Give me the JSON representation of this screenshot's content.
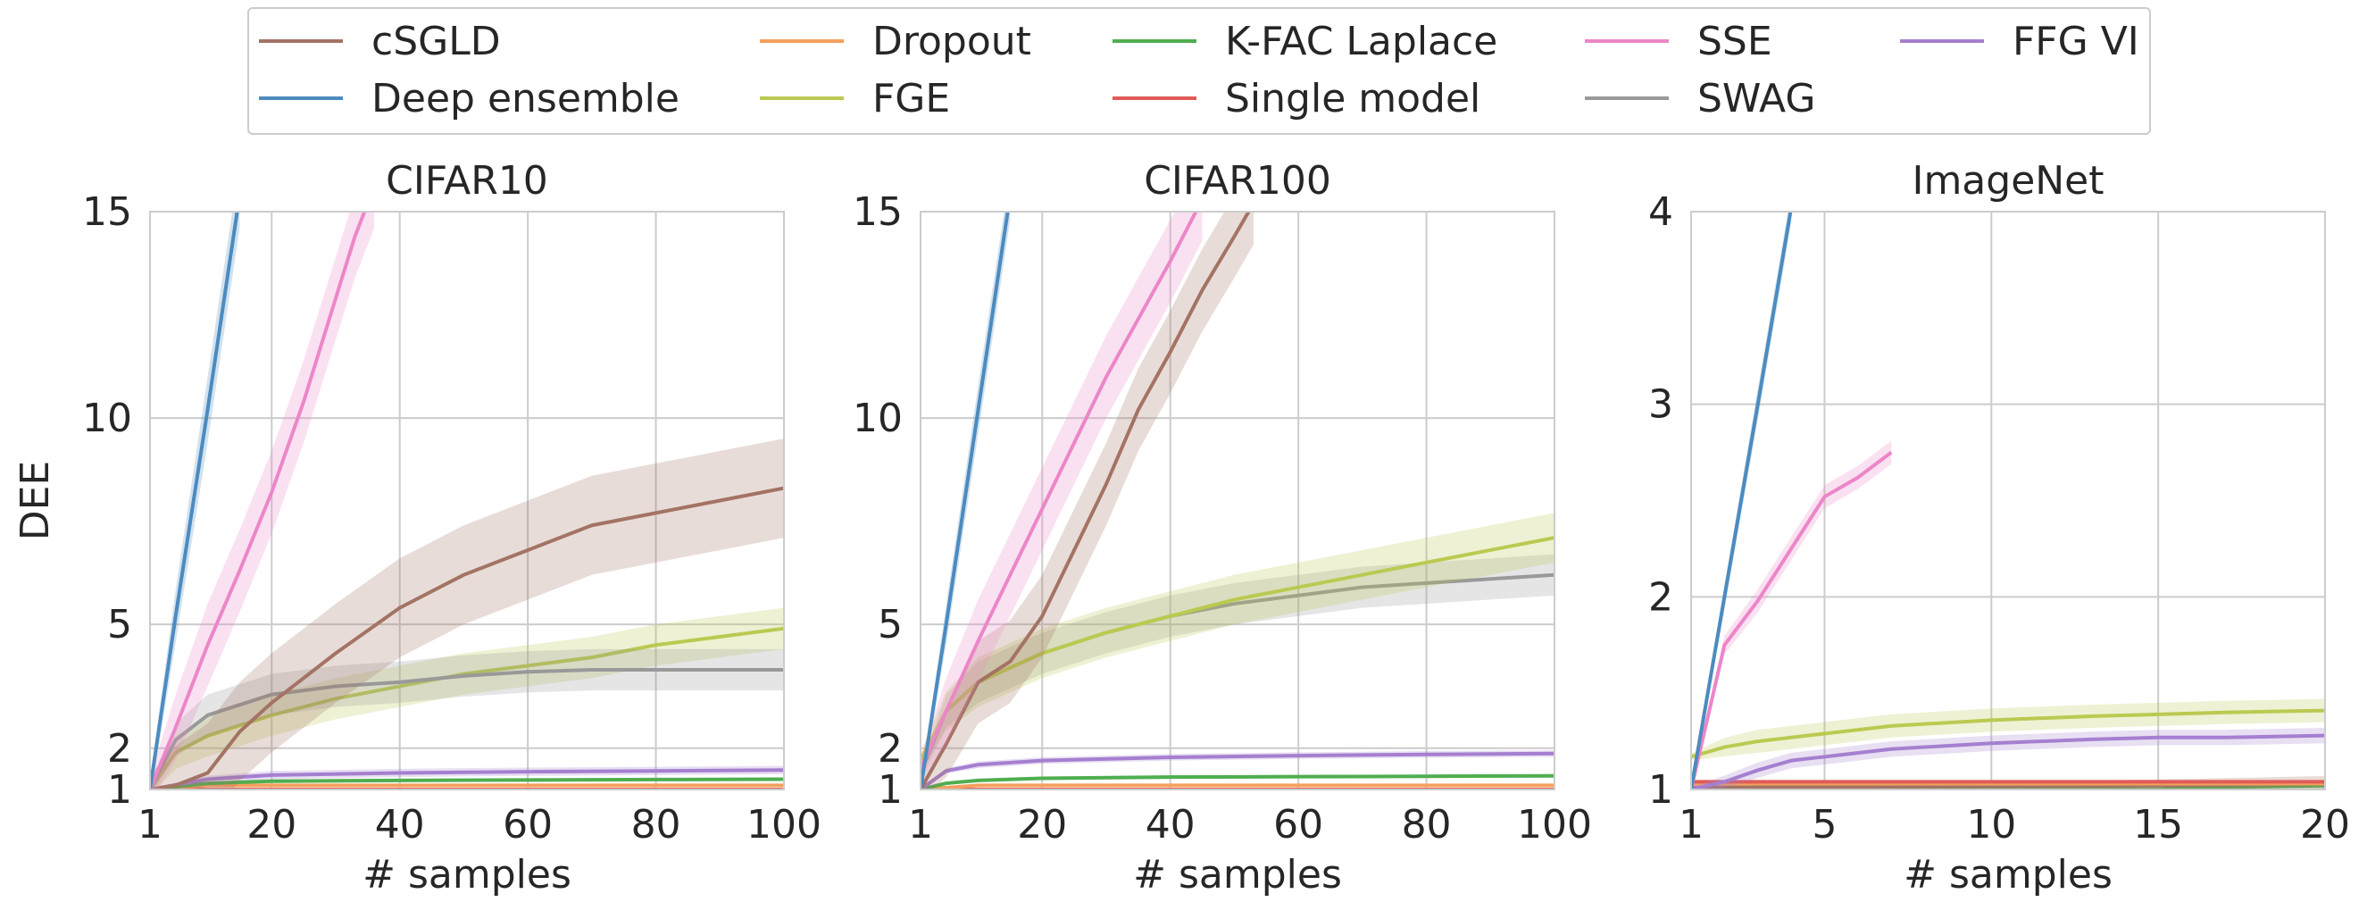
{
  "legend": {
    "items": [
      {
        "label": "cSGLD",
        "color": "#a37364"
      },
      {
        "label": "Deep ensemble",
        "color": "#4c8bbf"
      },
      {
        "label": "Dropout",
        "color": "#f5a05c"
      },
      {
        "label": "FGE",
        "color": "#bcc951"
      },
      {
        "label": "K-FAC Laplace",
        "color": "#4fae4f"
      },
      {
        "label": "Single model",
        "color": "#df5b57"
      },
      {
        "label": "SSE",
        "color": "#ec86c8"
      },
      {
        "label": "SWAG",
        "color": "#999999"
      },
      {
        "label": "FFG VI",
        "color": "#a57fd0"
      }
    ]
  },
  "chart_data": [
    {
      "type": "line",
      "title": "CIFAR10",
      "xlabel": "# samples",
      "ylabel": "DEE",
      "xlim": [
        1,
        100
      ],
      "ylim": [
        1,
        15
      ],
      "xticks": [
        1,
        20,
        40,
        60,
        80,
        100
      ],
      "yticks": [
        1,
        2,
        5,
        10,
        15
      ],
      "grid": true,
      "series": [
        {
          "name": "Deep ensemble",
          "x": [
            1,
            5,
            10,
            15
          ],
          "y": [
            1.0,
            5.2,
            10.2,
            15.4
          ],
          "band": 0.8
        },
        {
          "name": "SSE",
          "x": [
            1,
            5,
            10,
            15,
            20,
            25,
            30,
            33,
            36
          ],
          "y": [
            1.0,
            2.5,
            4.5,
            6.3,
            8.2,
            10.4,
            12.9,
            14.4,
            15.6
          ],
          "band": 1.0
        },
        {
          "name": "cSGLD",
          "x": [
            1,
            5,
            10,
            15,
            20,
            30,
            40,
            50,
            60,
            70,
            80,
            90,
            100
          ],
          "y": [
            1.0,
            1.1,
            1.4,
            2.4,
            3.1,
            4.3,
            5.4,
            6.2,
            6.8,
            7.4,
            7.7,
            8.0,
            8.3
          ],
          "band": 1.2
        },
        {
          "name": "SWAG",
          "x": [
            1,
            5,
            10,
            20,
            30,
            40,
            50,
            60,
            70,
            80,
            90,
            100
          ],
          "y": [
            1.0,
            2.2,
            2.8,
            3.3,
            3.5,
            3.6,
            3.75,
            3.85,
            3.9,
            3.9,
            3.9,
            3.9
          ],
          "band": 0.5
        },
        {
          "name": "FGE",
          "x": [
            1,
            5,
            10,
            20,
            30,
            40,
            50,
            60,
            70,
            80,
            90,
            100
          ],
          "y": [
            1.0,
            1.9,
            2.3,
            2.8,
            3.2,
            3.5,
            3.8,
            4.0,
            4.2,
            4.5,
            4.7,
            4.9
          ],
          "band": 0.5
        },
        {
          "name": "FFG VI",
          "x": [
            1,
            10,
            20,
            40,
            60,
            80,
            100
          ],
          "y": [
            1.0,
            1.25,
            1.35,
            1.4,
            1.43,
            1.45,
            1.47
          ],
          "band": 0.1
        },
        {
          "name": "K-FAC Laplace",
          "x": [
            1,
            10,
            20,
            40,
            60,
            80,
            100
          ],
          "y": [
            1.0,
            1.15,
            1.2,
            1.22,
            1.23,
            1.24,
            1.25
          ],
          "band": 0.04
        },
        {
          "name": "Dropout",
          "x": [
            1,
            10,
            100
          ],
          "y": [
            1.0,
            1.1,
            1.1
          ],
          "band": 0.02
        },
        {
          "name": "Single model",
          "x": [
            1,
            100
          ],
          "y": [
            1.0,
            1.0
          ],
          "band": 0.0
        }
      ]
    },
    {
      "type": "line",
      "title": "CIFAR100",
      "xlabel": "# samples",
      "ylabel": "",
      "xlim": [
        1,
        100
      ],
      "ylim": [
        1,
        15
      ],
      "xticks": [
        1,
        20,
        40,
        60,
        80,
        100
      ],
      "yticks": [
        1,
        2,
        5,
        10,
        15
      ],
      "grid": true,
      "series": [
        {
          "name": "Deep ensemble",
          "x": [
            1,
            5,
            10,
            15
          ],
          "y": [
            1.0,
            5.0,
            10.2,
            15.4
          ],
          "band": 0.6
        },
        {
          "name": "SSE",
          "x": [
            1,
            5,
            10,
            20,
            30,
            40,
            45
          ],
          "y": [
            1.5,
            2.9,
            4.6,
            7.8,
            11.0,
            13.8,
            15.3
          ],
          "band": 1.0
        },
        {
          "name": "cSGLD",
          "x": [
            1,
            5,
            10,
            15,
            20,
            25,
            30,
            35,
            40,
            45,
            50,
            53
          ],
          "y": [
            1.0,
            2.1,
            3.6,
            4.1,
            5.2,
            6.8,
            8.4,
            10.2,
            11.6,
            13.1,
            14.4,
            15.2
          ],
          "band": 1.0
        },
        {
          "name": "FGE",
          "x": [
            1,
            5,
            10,
            20,
            30,
            40,
            50,
            60,
            70,
            80,
            90,
            100
          ],
          "y": [
            1.7,
            2.9,
            3.6,
            4.3,
            4.8,
            5.2,
            5.6,
            5.9,
            6.2,
            6.5,
            6.8,
            7.1
          ],
          "band": 0.6
        },
        {
          "name": "SWAG",
          "x": [
            1,
            5,
            10,
            20,
            30,
            40,
            50,
            60,
            70,
            80,
            90,
            100
          ],
          "y": [
            1.4,
            2.9,
            3.6,
            4.3,
            4.8,
            5.2,
            5.5,
            5.7,
            5.9,
            6.0,
            6.1,
            6.2
          ],
          "band": 0.5
        },
        {
          "name": "FFG VI",
          "x": [
            1,
            5,
            10,
            20,
            40,
            60,
            80,
            100
          ],
          "y": [
            1.0,
            1.45,
            1.6,
            1.7,
            1.78,
            1.82,
            1.85,
            1.87
          ],
          "band": 0.08
        },
        {
          "name": "K-FAC Laplace",
          "x": [
            1,
            5,
            10,
            20,
            40,
            60,
            80,
            100
          ],
          "y": [
            1.0,
            1.15,
            1.22,
            1.27,
            1.3,
            1.31,
            1.32,
            1.33
          ],
          "band": 0.04
        },
        {
          "name": "Dropout",
          "x": [
            1,
            10,
            100
          ],
          "y": [
            1.0,
            1.1,
            1.1
          ],
          "band": 0.02
        },
        {
          "name": "Single model",
          "x": [
            1,
            100
          ],
          "y": [
            1.0,
            1.0
          ],
          "band": 0.0
        }
      ]
    },
    {
      "type": "line",
      "title": "ImageNet",
      "xlabel": "# samples",
      "ylabel": "",
      "xlim": [
        1,
        20
      ],
      "ylim": [
        1,
        4
      ],
      "xticks": [
        1,
        5,
        10,
        15,
        20
      ],
      "yticks": [
        1,
        2,
        3,
        4
      ],
      "grid": true,
      "series": [
        {
          "name": "Deep ensemble",
          "x": [
            1,
            2,
            3,
            4
          ],
          "y": [
            1.0,
            2.0,
            3.0,
            4.02
          ],
          "band": 0.08
        },
        {
          "name": "SSE",
          "x": [
            1,
            2,
            3,
            4,
            5,
            6,
            7
          ],
          "y": [
            1.0,
            1.75,
            1.98,
            2.25,
            2.52,
            2.62,
            2.75
          ],
          "band": 0.06
        },
        {
          "name": "FGE",
          "x": [
            1,
            2,
            3,
            5,
            7,
            10,
            13,
            15,
            17,
            20
          ],
          "y": [
            1.17,
            1.22,
            1.25,
            1.29,
            1.33,
            1.36,
            1.38,
            1.39,
            1.4,
            1.41
          ],
          "band": 0.06
        },
        {
          "name": "FFG VI",
          "x": [
            1,
            2,
            3,
            4,
            5,
            7,
            10,
            13,
            15,
            17,
            20
          ],
          "y": [
            1.0,
            1.04,
            1.1,
            1.15,
            1.17,
            1.21,
            1.24,
            1.26,
            1.27,
            1.27,
            1.28
          ],
          "band": 0.04
        },
        {
          "name": "Single model",
          "x": [
            1,
            20
          ],
          "y": [
            1.04,
            1.04
          ],
          "band": 0.0
        },
        {
          "name": "Dropout",
          "x": [
            1,
            20
          ],
          "y": [
            1.03,
            1.03
          ],
          "band": 0.0
        },
        {
          "name": "cSGLD",
          "x": [
            1,
            15,
            20
          ],
          "y": [
            1.01,
            1.02,
            1.03
          ],
          "band": 0.04
        },
        {
          "name": "K-FAC Laplace",
          "x": [
            1,
            15,
            16,
            20
          ],
          "y": [
            1.0,
            1.0,
            1.01,
            1.02
          ],
          "band": 0.02
        }
      ]
    }
  ]
}
